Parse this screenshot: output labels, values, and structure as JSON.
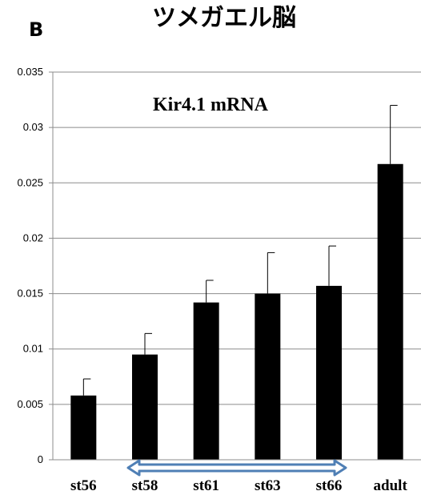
{
  "panel_label": "B",
  "chart_data": {
    "type": "bar",
    "title": "ツメガエル脳",
    "annotation": "Kir4.1 mRNA",
    "categories": [
      "st56",
      "st58",
      "st61",
      "st63",
      "st66",
      "adult"
    ],
    "values": [
      0.0058,
      0.0095,
      0.0142,
      0.015,
      0.0157,
      0.0267
    ],
    "errors": [
      0.0015,
      0.0019,
      0.002,
      0.0037,
      0.0036,
      0.0053
    ],
    "ylim": [
      0,
      0.035
    ],
    "yticks": [
      "0",
      "0.005",
      "0.01",
      "0.015",
      "0.02",
      "0.025",
      "0.03",
      "0.035"
    ],
    "grid": true,
    "bar_color": "#000000",
    "grid_color": "#8c8c8c",
    "arrow_color": "#4f7fb5",
    "arrow_fill": "#ffffff",
    "arrow_span": [
      "st58",
      "st66"
    ]
  }
}
